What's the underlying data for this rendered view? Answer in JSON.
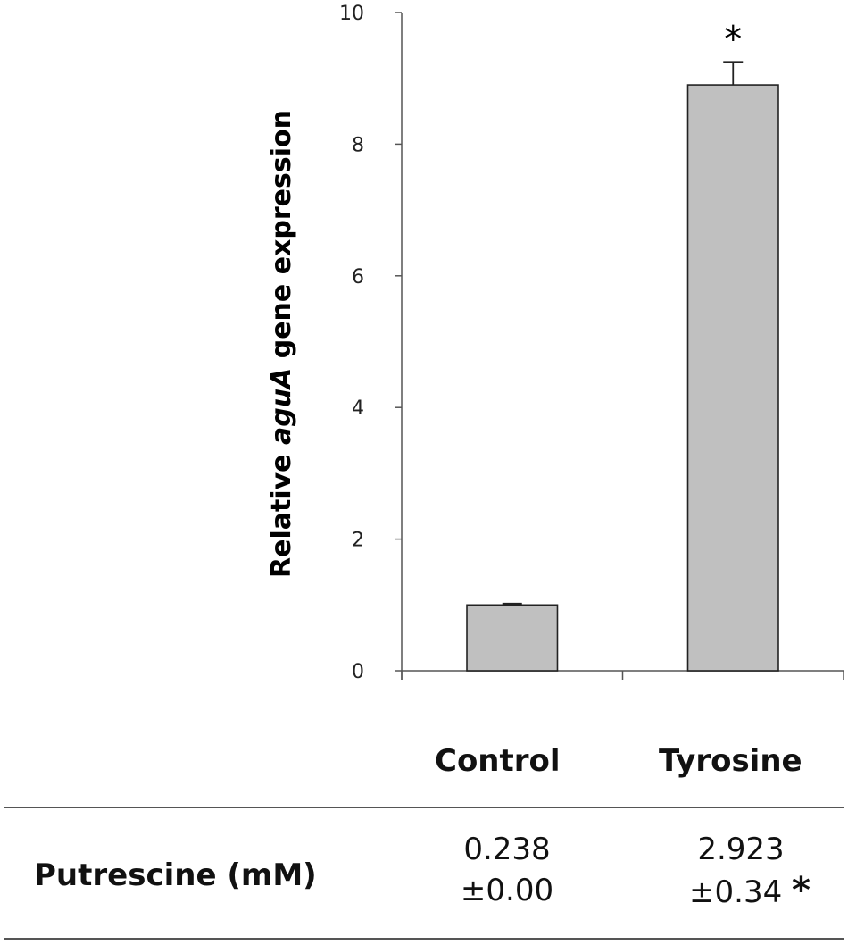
{
  "chart_data": {
    "type": "bar",
    "categories": [
      "Control",
      "Tyrosine"
    ],
    "values": [
      1.0,
      8.9
    ],
    "errors": [
      0.02,
      0.35
    ],
    "significance": [
      "",
      "*"
    ],
    "ylabel_prefix": "Relative ",
    "ylabel_gene": "aguA",
    "ylabel_suffix": " gene expression",
    "ylim": [
      0,
      10
    ],
    "yticks": [
      0,
      2,
      4,
      6,
      8,
      10
    ],
    "bar_color": "#c0c0c0"
  },
  "table": {
    "headers": [
      "Control",
      "Tyrosine"
    ],
    "row_label": "Putrescine (mM)",
    "values": [
      {
        "mean": "0.238",
        "sd": "±0.00",
        "sig": ""
      },
      {
        "mean": "2.923",
        "sd": "±0.34",
        "sig": "*"
      }
    ]
  }
}
